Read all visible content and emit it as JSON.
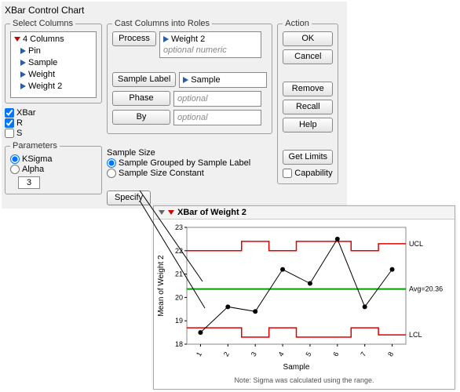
{
  "dialog": {
    "title": "XBar Control Chart",
    "select_columns": {
      "legend": "Select Columns",
      "count_label": "4 Columns",
      "items": [
        "Pin",
        "Sample",
        "Weight",
        "Weight 2"
      ]
    },
    "chart_types": {
      "xbar": {
        "label": "XBar",
        "checked": true
      },
      "r": {
        "label": "R",
        "checked": true
      },
      "s": {
        "label": "S",
        "checked": false
      }
    },
    "parameters": {
      "legend": "Parameters",
      "ksigma": {
        "label": "KSigma",
        "selected": true
      },
      "alpha": {
        "label": "Alpha",
        "selected": false
      },
      "value": "3"
    },
    "cast": {
      "legend": "Cast Columns into Roles",
      "process": {
        "btn": "Process",
        "value": "Weight 2",
        "placeholder": "optional numeric"
      },
      "sample_label": {
        "btn": "Sample Label",
        "value": "Sample"
      },
      "phase": {
        "btn": "Phase",
        "placeholder": "optional"
      },
      "by": {
        "btn": "By",
        "placeholder": "optional"
      }
    },
    "sample_size": {
      "label": "Sample Size",
      "grouped": {
        "label": "Sample Grouped by Sample Label",
        "selected": true
      },
      "constant": {
        "label": "Sample Size Constant",
        "selected": false
      },
      "specify_btn": "Specify"
    },
    "action": {
      "legend": "Action",
      "ok": "OK",
      "cancel": "Cancel",
      "remove": "Remove",
      "recall": "Recall",
      "help": "Help",
      "get_limits": "Get Limits",
      "capability": {
        "label": "Capability",
        "checked": false
      }
    }
  },
  "chart": {
    "title": "XBar of Weight 2",
    "ylabel": "Mean of Weight 2",
    "xlabel": "Sample",
    "note": "Note: Sigma was calculated using the range.",
    "ylim": [
      18,
      23
    ],
    "yticks": [
      18,
      19,
      20,
      21,
      22,
      23
    ],
    "xticks": [
      1,
      2,
      3,
      4,
      5,
      6,
      7,
      8
    ],
    "avg": 20.36,
    "avg_label": "Avg=20.36",
    "ucl_label": "UCL",
    "lcl_label": "LCL",
    "series_color": "#000000",
    "avg_color": "#00a000",
    "limit_color": "#e00000",
    "background": "#ffffff",
    "points": [
      {
        "x": 1,
        "y": 18.5
      },
      {
        "x": 2,
        "y": 19.6
      },
      {
        "x": 3,
        "y": 19.4
      },
      {
        "x": 4,
        "y": 21.2
      },
      {
        "x": 5,
        "y": 20.6
      },
      {
        "x": 6,
        "y": 22.5
      },
      {
        "x": 7,
        "y": 19.6
      },
      {
        "x": 8,
        "y": 21.2
      }
    ],
    "ucl_y": [
      22.0,
      22.0,
      22.4,
      22.0,
      22.4,
      22.4,
      22.0,
      22.3
    ],
    "lcl_y": [
      18.7,
      18.7,
      18.3,
      18.7,
      18.3,
      18.3,
      18.7,
      18.4
    ],
    "axis_fontsize": 9,
    "label_fontsize": 10,
    "marker_size": 3
  }
}
